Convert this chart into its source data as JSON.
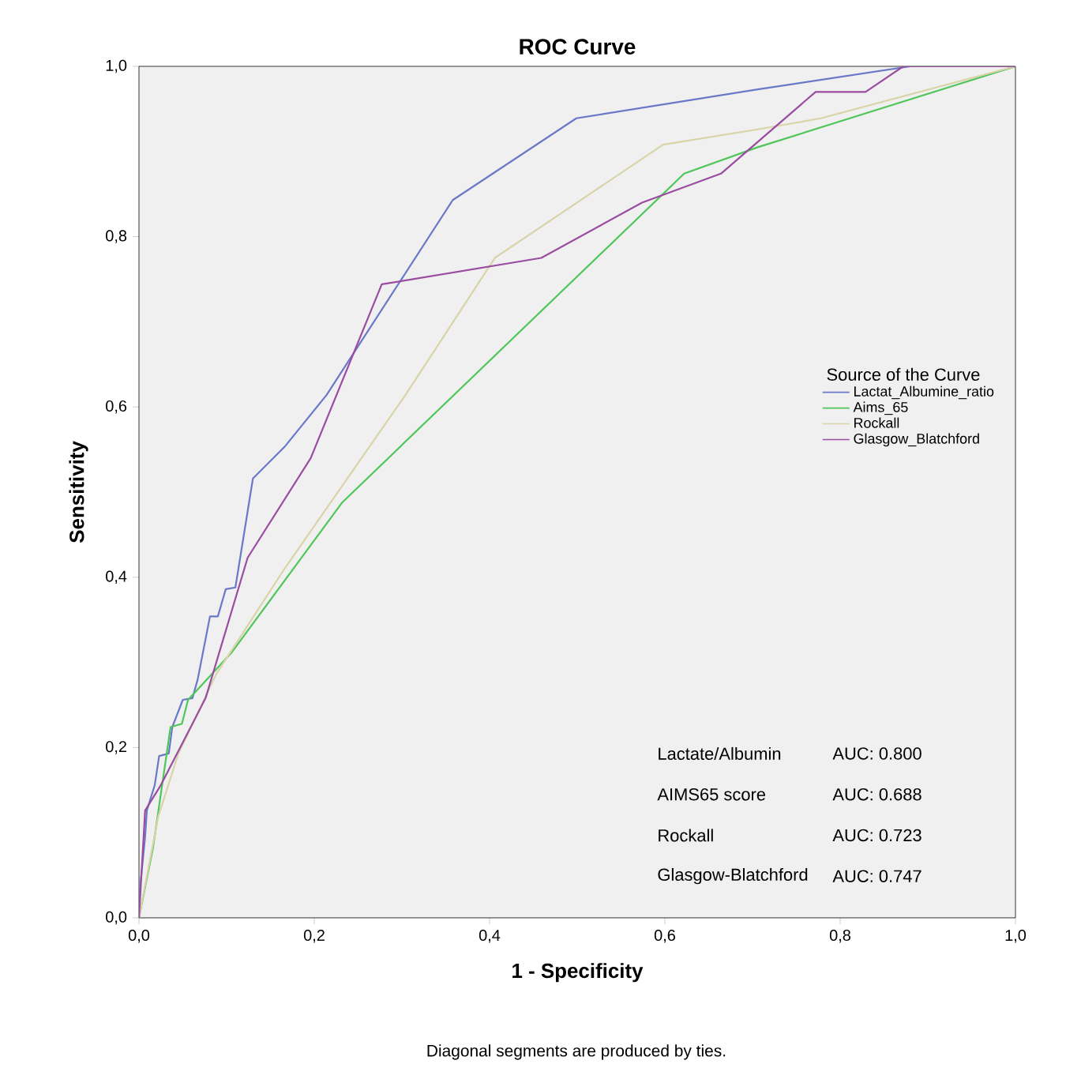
{
  "chart_data": {
    "type": "line",
    "title": "ROC Curve",
    "xlabel": "1 - Specificity",
    "ylabel": "Sensitivity",
    "legend_title": "Source of the Curve",
    "xlim": [
      0,
      1
    ],
    "ylim": [
      0,
      1
    ],
    "xticks": [
      {
        "value": 0,
        "label": "0,0"
      },
      {
        "value": 0.2,
        "label": "0,2"
      },
      {
        "value": 0.4,
        "label": "0,4"
      },
      {
        "value": 0.6,
        "label": "0,6"
      },
      {
        "value": 0.8,
        "label": "0,8"
      },
      {
        "value": 1,
        "label": "1,0"
      }
    ],
    "yticks": [
      {
        "value": 0,
        "label": "0,0"
      },
      {
        "value": 0.2,
        "label": "0,2"
      },
      {
        "value": 0.4,
        "label": "0,4"
      },
      {
        "value": 0.6,
        "label": "0,6"
      },
      {
        "value": 0.8,
        "label": "0,8"
      },
      {
        "value": 1,
        "label": "1,0"
      }
    ],
    "grid": false,
    "legend": "right",
    "series": [
      {
        "name": "Lactat_Albumine_ratio",
        "color": "#6a78c8",
        "x": [
          0,
          0.001,
          0.007,
          0.009,
          0.018,
          0.023,
          0.034,
          0.038,
          0.05,
          0.061,
          0.067,
          0.081,
          0.09,
          0.099,
          0.11,
          0.13,
          0.166,
          0.214,
          0.358,
          0.499,
          0.706,
          0.88,
          1
        ],
        "values": [
          0,
          0.033,
          0.095,
          0.126,
          0.156,
          0.19,
          0.193,
          0.224,
          0.256,
          0.258,
          0.28,
          0.354,
          0.354,
          0.386,
          0.388,
          0.516,
          0.553,
          0.614,
          0.843,
          0.939,
          0.973,
          1,
          1
        ]
      },
      {
        "name": "Aims_65",
        "color": "#4ec65a",
        "x": [
          0,
          0.016,
          0.036,
          0.049,
          0.056,
          0.106,
          0.232,
          0.622,
          0.706,
          1
        ],
        "values": [
          0,
          0.082,
          0.224,
          0.228,
          0.256,
          0.312,
          0.488,
          0.874,
          0.905,
          1
        ]
      },
      {
        "name": "Rockall",
        "color": "#d8d4a8",
        "x": [
          0,
          0.022,
          0.045,
          0.088,
          0.166,
          0.304,
          0.406,
          0.598,
          0.706,
          0.778,
          1
        ],
        "values": [
          0,
          0.119,
          0.193,
          0.286,
          0.41,
          0.614,
          0.775,
          0.908,
          0.926,
          0.939,
          1
        ]
      },
      {
        "name": "Glasgow_Blatchford",
        "color": "#9a4ca0",
        "x": [
          0,
          0.007,
          0.025,
          0.076,
          0.124,
          0.196,
          0.277,
          0.459,
          0.574,
          0.664,
          0.772,
          0.829,
          0.872,
          1
        ],
        "values": [
          0,
          0.126,
          0.156,
          0.258,
          0.423,
          0.54,
          0.744,
          0.775,
          0.84,
          0.874,
          0.97,
          0.97,
          1,
          1
        ]
      }
    ],
    "annotations": [
      "Diagonal segments are produced by ties.",
      "Lactate/Albumin",
      "AUC: 0.800",
      "AIMS65 score",
      "AUC: 0.688",
      "Rockall",
      "AUC: 0.723",
      "Glasgow-Blatchford",
      "AUC: 0.747"
    ]
  }
}
